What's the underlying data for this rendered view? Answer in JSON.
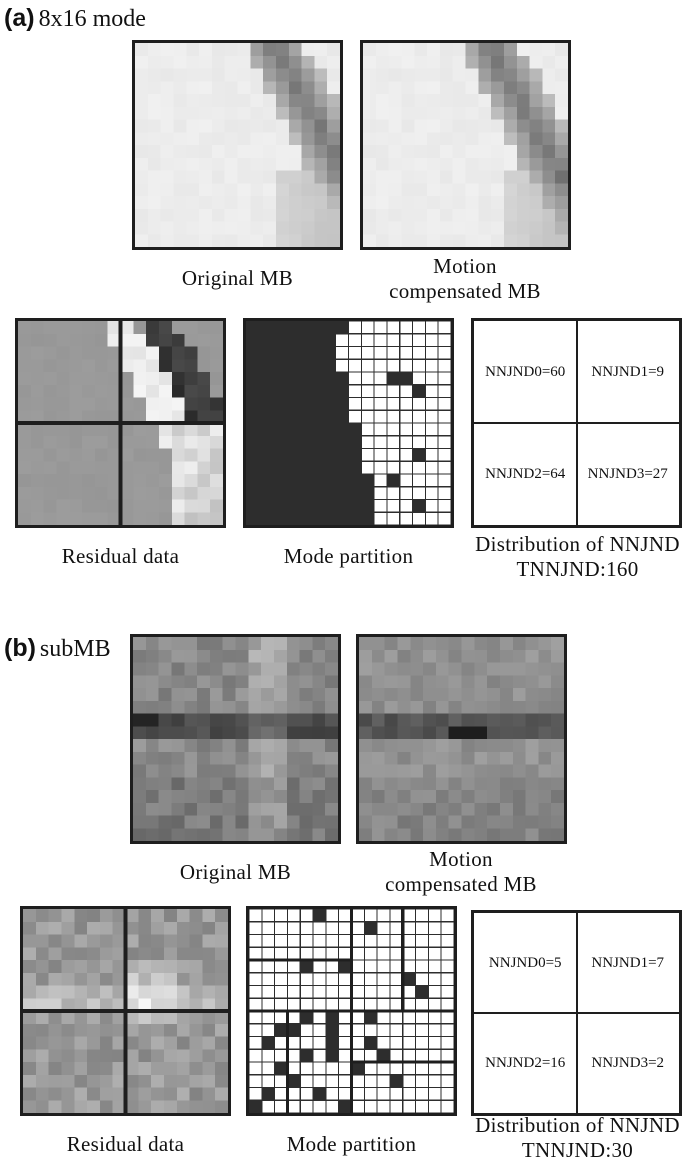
{
  "panel_a": {
    "tag": "(a)",
    "mode": "8x16 mode",
    "original_caption": "Original MB",
    "motion_caption_1": "Motion",
    "motion_caption_2": "compensated MB",
    "residual_caption": "Residual data",
    "partition_caption": "Mode partition",
    "dist_caption_1": "Distribution of NNJND",
    "dist_caption_2": "TNNJND:160",
    "dist_cells": [
      "NNJND0=60",
      "NNJND1=9",
      "NNJND2=64",
      "NNJND3=27"
    ]
  },
  "panel_b": {
    "tag": "(b)",
    "mode": "subMB",
    "original_caption": "Original MB",
    "motion_caption_1": "Motion",
    "motion_caption_2": "compensated MB",
    "residual_caption": "Residual data",
    "partition_caption": "Mode partition",
    "dist_caption_1": "Distribution of NNJND",
    "dist_caption_2": "TNNJND:30",
    "dist_cells": [
      "NNJND0=5",
      "NNJND1=7",
      "NNJND2=16",
      "NNJND3=2"
    ]
  }
}
